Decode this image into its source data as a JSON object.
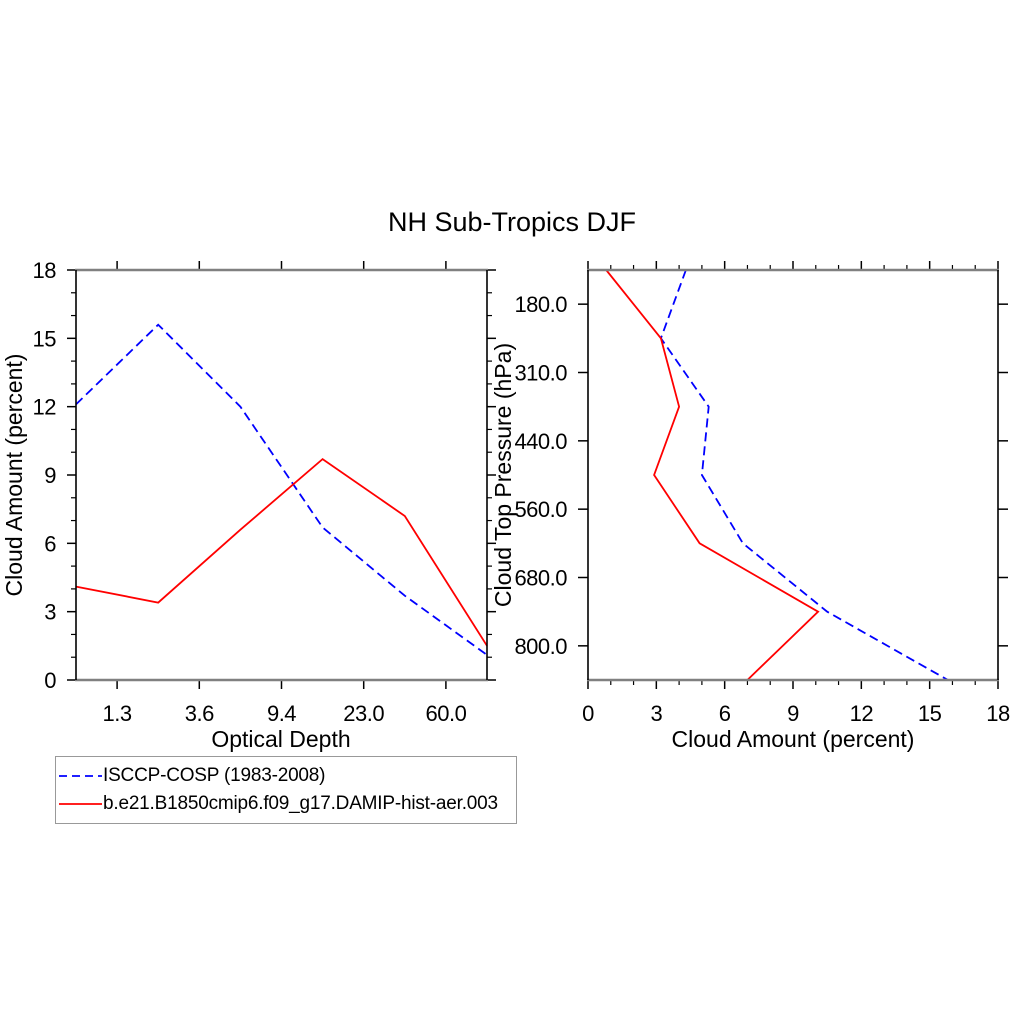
{
  "title": "NH Sub-Tropics DJF",
  "colors": {
    "series_blue": "#0000ff",
    "series_red": "#ff0000",
    "axis_horizontal": "#808080",
    "axis_vertical": "#000000",
    "legend_border": "#999999"
  },
  "legend": {
    "entries": [
      {
        "label": "ISCCP-COSP (1983-2008)",
        "color": "#0000ff",
        "style": "dashed"
      },
      {
        "label": "b.e21.B1850cmip6.f09_g17.DAMIP-hist-aer.003",
        "color": "#ff0000",
        "style": "solid"
      }
    ]
  },
  "chart_data": [
    {
      "type": "line",
      "panel": "left",
      "xlabel": "Optical Depth",
      "ylabel": "Cloud Amount (percent)",
      "ylim": [
        0,
        18
      ],
      "ytick_labels": [
        "0",
        "3",
        "6",
        "9",
        "12",
        "15",
        "18"
      ],
      "minor_y_unit": 1,
      "x_axis": {
        "kind": "categorical-bins",
        "tick_labels": [
          "1.3",
          "3.6",
          "9.4",
          "23.0",
          "60.0"
        ],
        "note": "6 data points at optical-depth bin centers; ticks mark bin boundaries"
      },
      "grid": false,
      "series": [
        {
          "name": "ISCCP-COSP (1983-2008)",
          "color": "#0000ff",
          "style": "dashed",
          "values": [
            12.1,
            15.6,
            12.0,
            6.7,
            3.7,
            1.1
          ]
        },
        {
          "name": "b.e21.B1850cmip6.f09_g17.DAMIP-hist-aer.003",
          "color": "#ff0000",
          "style": "solid",
          "values": [
            4.1,
            3.4,
            6.6,
            9.7,
            7.2,
            1.5
          ]
        }
      ]
    },
    {
      "type": "line",
      "panel": "right",
      "xlabel": "Cloud Amount (percent)",
      "ylabel": "Cloud Top Pressure (hPa)",
      "xlim": [
        0,
        18
      ],
      "xtick_labels": [
        "0",
        "3",
        "6",
        "9",
        "12",
        "15",
        "18"
      ],
      "minor_x_unit": 1,
      "y_axis": {
        "kind": "categorical-bins",
        "tick_labels": [
          "180.0",
          "310.0",
          "440.0",
          "560.0",
          "680.0",
          "800.0"
        ],
        "note": "7 data points at cloud-top-pressure bin centers (top to bottom); ticks mark bin boundaries"
      },
      "grid": false,
      "series": [
        {
          "name": "ISCCP-COSP (1983-2008)",
          "color": "#0000ff",
          "style": "dashed",
          "values": [
            4.3,
            3.2,
            5.3,
            5.0,
            6.8,
            10.5,
            15.8
          ]
        },
        {
          "name": "b.e21.B1850cmip6.f09_g17.DAMIP-hist-aer.003",
          "color": "#ff0000",
          "style": "solid",
          "values": [
            0.8,
            3.2,
            4.0,
            2.9,
            4.9,
            10.1,
            7.0
          ]
        }
      ]
    }
  ]
}
